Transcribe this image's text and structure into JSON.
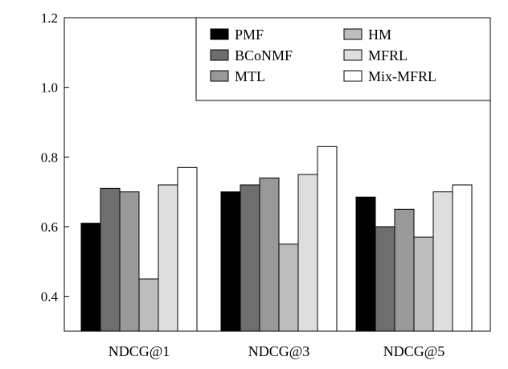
{
  "chart_data": {
    "type": "bar",
    "title": "",
    "xlabel": "",
    "ylabel": "",
    "ylim": [
      0.3,
      1.2
    ],
    "yticks": [
      "0.4",
      "0.6",
      "0.8",
      "1.0",
      "1.2"
    ],
    "ytick_values": [
      0.4,
      0.6,
      0.8,
      1.0,
      1.2
    ],
    "categories": [
      "NDCG@1",
      "NDCG@3",
      "NDCG@5"
    ],
    "grid": false,
    "legend_position": "top-right",
    "series": [
      {
        "name": "PMF",
        "color": "#000000",
        "values": [
          0.61,
          0.7,
          0.685
        ]
      },
      {
        "name": "BCoNMF",
        "color": "#6e6e6e",
        "values": [
          0.71,
          0.72,
          0.6
        ]
      },
      {
        "name": "MTL",
        "color": "#999999",
        "values": [
          0.7,
          0.74,
          0.65
        ]
      },
      {
        "name": "HM",
        "color": "#bdbdbd",
        "values": [
          0.45,
          0.55,
          0.57
        ]
      },
      {
        "name": "MFRL",
        "color": "#dedede",
        "values": [
          0.72,
          0.75,
          0.7
        ]
      },
      {
        "name": "Mix-MFRL",
        "color": "#ffffff",
        "values": [
          0.77,
          0.83,
          0.72
        ]
      }
    ]
  }
}
